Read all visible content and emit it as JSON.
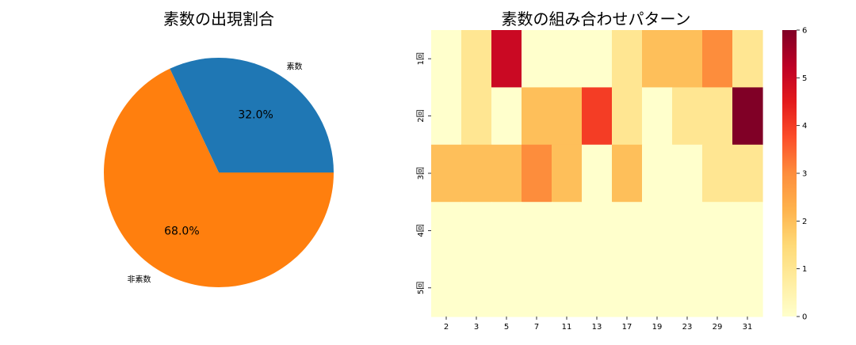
{
  "chart_data": [
    {
      "type": "pie",
      "title": "素数の出現割合",
      "labels": [
        "素数",
        "非素数"
      ],
      "values": [
        32.0,
        68.0
      ],
      "value_labels": [
        "32.0%",
        "68.0%"
      ],
      "colors": [
        "#1f77b4",
        "#ff7f0e"
      ]
    },
    {
      "type": "heatmap",
      "title": "素数の組み合わせパターン",
      "xlabel": "",
      "ylabel": "",
      "x_categories": [
        "2",
        "3",
        "5",
        "7",
        "11",
        "13",
        "17",
        "19",
        "23",
        "29",
        "31"
      ],
      "y_categories": [
        "1回",
        "2回",
        "3回",
        "4回",
        "5回"
      ],
      "values": [
        [
          0,
          1,
          5,
          0,
          0,
          0,
          1,
          2,
          2,
          3,
          1
        ],
        [
          0,
          1,
          0,
          2,
          2,
          4,
          1,
          0,
          1,
          1,
          6
        ],
        [
          2,
          2,
          2,
          3,
          2,
          0,
          2,
          0,
          0,
          1,
          1
        ],
        [
          0,
          0,
          0,
          0,
          0,
          0,
          0,
          0,
          0,
          0,
          0
        ],
        [
          0,
          0,
          0,
          0,
          0,
          0,
          0,
          0,
          0,
          0,
          0
        ]
      ],
      "vmin": 0,
      "vmax": 6,
      "colormap": "YlOrRd",
      "colorbar_ticks": [
        "0",
        "1",
        "2",
        "3",
        "4",
        "5",
        "6"
      ]
    }
  ]
}
